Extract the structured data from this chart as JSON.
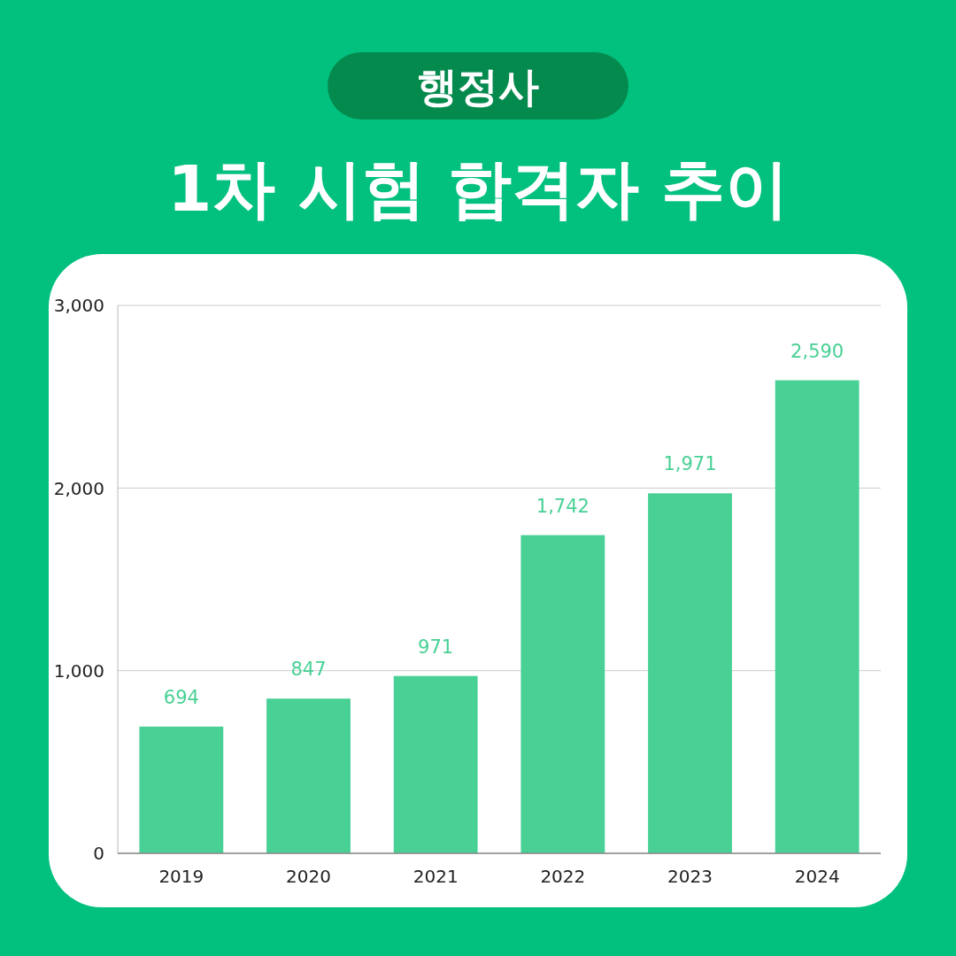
{
  "chart_data": {
    "type": "bar",
    "subtitle": "행정사",
    "title": "1차 시험 합격자 추이",
    "categories": [
      "2019",
      "2020",
      "2021",
      "2022",
      "2023",
      "2024"
    ],
    "values": [
      694,
      847,
      971,
      1742,
      1971,
      2590
    ],
    "value_labels": [
      "694",
      "847",
      "971",
      "1,742",
      "1,971",
      "2,590"
    ],
    "color": "#48d095",
    "grid": "y",
    "ylim": [
      0,
      3000
    ],
    "yticks": [
      0,
      {
        "value": 1000,
        "label": "1,000"
      },
      {
        "value": 2000,
        "label": "2,000"
      },
      {
        "value": 3000,
        "label": "3,000"
      }
    ]
  }
}
